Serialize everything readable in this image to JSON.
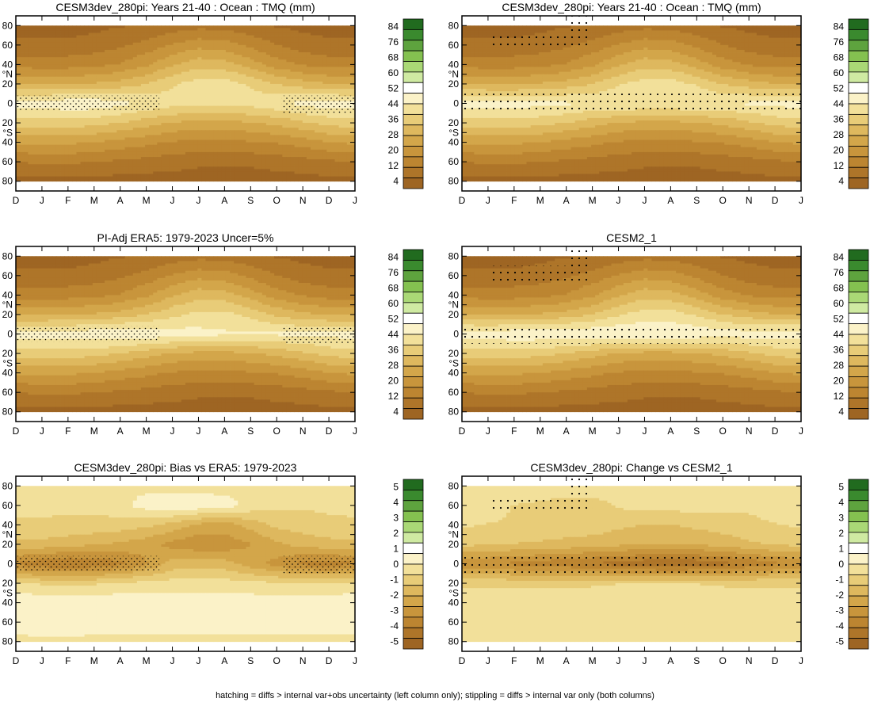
{
  "footer": "hatching = diffs > internal var+obs uncertainty (left column only); stippling = diffs > internal var only (both columns)",
  "axes": {
    "months": [
      "D",
      "J",
      "F",
      "M",
      "A",
      "M",
      "J",
      "J",
      "A",
      "S",
      "O",
      "N",
      "D",
      "J"
    ],
    "lat_ticks": [
      "80",
      "60",
      "40",
      "°N",
      "20",
      "0",
      "20",
      "°S",
      "40",
      "60",
      "80"
    ],
    "lat_values": [
      80,
      60,
      40,
      30,
      20,
      0,
      -20,
      -30,
      -40,
      -60,
      -80
    ]
  },
  "legends": {
    "absolute": {
      "labels": [
        "84",
        "76",
        "68",
        "60",
        "52",
        "44",
        "36",
        "28",
        "20",
        "12",
        "4"
      ],
      "colors": [
        "#216b1f",
        "#3a8a2e",
        "#5ea33e",
        "#84c150",
        "#aad876",
        "#cfeaa2",
        "#ffffff",
        "#fbf2c8",
        "#f2e09a",
        "#e8cc78",
        "#deb85e",
        "#d3a64a",
        "#c8953c",
        "#bc8531",
        "#ae7529",
        "#9e6523"
      ]
    },
    "difference": {
      "labels": [
        "5",
        "4",
        "3",
        "2",
        "1",
        "0",
        "-1",
        "-2",
        "-3",
        "-4",
        "-5"
      ],
      "colors": [
        "#216b1f",
        "#3a8a2e",
        "#5ea33e",
        "#84c150",
        "#aad876",
        "#cfeaa2",
        "#ffffff",
        "#fbf2c8",
        "#f2e09a",
        "#e8cc78",
        "#deb85e",
        "#d3a64a",
        "#c8953c",
        "#bc8531",
        "#ae7529",
        "#9e6523"
      ]
    }
  },
  "chart_data": [
    {
      "type": "heatmap",
      "title": "CESM3dev_280pi: Years 21-40 : Ocean : TMQ (mm)",
      "kind": "absolute",
      "x": [
        "D",
        "J",
        "F",
        "M",
        "A",
        "M",
        "J",
        "J",
        "A",
        "S",
        "O",
        "N",
        "D",
        "J"
      ],
      "y": [
        80,
        60,
        40,
        20,
        0,
        -20,
        -40,
        -60,
        -80
      ],
      "values_mm": [
        [
          3,
          3,
          3,
          4,
          5,
          6,
          8,
          9,
          9,
          7,
          5,
          4,
          3,
          3
        ],
        [
          7,
          7,
          7,
          8,
          10,
          13,
          17,
          20,
          19,
          15,
          11,
          8,
          7,
          7
        ],
        [
          14,
          14,
          14,
          15,
          17,
          21,
          27,
          31,
          30,
          25,
          19,
          16,
          14,
          14
        ],
        [
          28,
          27,
          27,
          28,
          30,
          33,
          38,
          41,
          41,
          38,
          33,
          30,
          28,
          28
        ],
        [
          46,
          47,
          48,
          48,
          46,
          43,
          41,
          40,
          40,
          41,
          43,
          46,
          47,
          46
        ],
        [
          36,
          36,
          36,
          35,
          33,
          30,
          27,
          26,
          26,
          27,
          29,
          32,
          35,
          36
        ],
        [
          23,
          23,
          23,
          22,
          20,
          18,
          16,
          15,
          15,
          16,
          17,
          19,
          22,
          23
        ],
        [
          11,
          12,
          12,
          11,
          10,
          9,
          8,
          7,
          7,
          7,
          8,
          9,
          10,
          11
        ],
        [
          4,
          4,
          4,
          4,
          3,
          3,
          3,
          2,
          2,
          2,
          3,
          3,
          4,
          4
        ]
      ],
      "significance": "hatching and stippling near equator"
    },
    {
      "type": "heatmap",
      "title": "CESM3dev_280pi: Years 21-40 : Ocean : TMQ (mm)",
      "kind": "absolute",
      "x": [
        "D",
        "J",
        "F",
        "M",
        "A",
        "M",
        "J",
        "J",
        "A",
        "S",
        "O",
        "N",
        "D",
        "J"
      ],
      "y": [
        80,
        60,
        40,
        20,
        0,
        -20,
        -40,
        -60,
        -80
      ],
      "values_mm": [
        [
          3,
          3,
          3,
          4,
          5,
          6,
          8,
          9,
          9,
          7,
          5,
          4,
          3,
          3
        ],
        [
          7,
          7,
          7,
          8,
          10,
          13,
          17,
          20,
          19,
          15,
          11,
          8,
          7,
          7
        ],
        [
          14,
          14,
          14,
          15,
          17,
          21,
          27,
          31,
          30,
          25,
          19,
          16,
          14,
          14
        ],
        [
          28,
          27,
          27,
          28,
          30,
          33,
          38,
          41,
          41,
          38,
          33,
          30,
          28,
          28
        ],
        [
          46,
          46,
          46,
          46,
          45,
          44,
          44,
          44,
          44,
          44,
          44,
          45,
          46,
          46
        ],
        [
          36,
          36,
          36,
          35,
          33,
          30,
          27,
          26,
          26,
          27,
          29,
          32,
          35,
          36
        ],
        [
          23,
          23,
          23,
          22,
          20,
          18,
          16,
          15,
          15,
          16,
          17,
          19,
          22,
          23
        ],
        [
          11,
          12,
          12,
          11,
          10,
          9,
          8,
          7,
          7,
          7,
          8,
          9,
          10,
          11
        ],
        [
          4,
          4,
          4,
          4,
          3,
          3,
          3,
          2,
          2,
          2,
          3,
          3,
          4,
          4
        ]
      ],
      "significance": "stippling at northern high latitudes and equator"
    },
    {
      "type": "heatmap",
      "title": "PI-Adj ERA5: 1979-2023 Uncer=5%",
      "kind": "absolute",
      "x": [
        "D",
        "J",
        "F",
        "M",
        "A",
        "M",
        "J",
        "J",
        "A",
        "S",
        "O",
        "N",
        "D",
        "J"
      ],
      "y": [
        80,
        60,
        40,
        20,
        0,
        -20,
        -40,
        -60,
        -80
      ],
      "values_mm": [
        [
          3,
          3,
          3,
          4,
          5,
          6,
          8,
          9,
          9,
          7,
          5,
          4,
          3,
          3
        ],
        [
          7,
          7,
          7,
          8,
          10,
          13,
          17,
          20,
          19,
          15,
          11,
          8,
          7,
          7
        ],
        [
          14,
          14,
          14,
          15,
          17,
          21,
          27,
          31,
          30,
          25,
          19,
          16,
          14,
          14
        ],
        [
          27,
          27,
          27,
          28,
          30,
          33,
          37,
          40,
          40,
          37,
          32,
          29,
          27,
          27
        ],
        [
          46,
          46,
          47,
          48,
          49,
          48,
          47,
          46,
          45,
          45,
          45,
          45,
          46,
          46
        ],
        [
          36,
          36,
          36,
          35,
          33,
          30,
          27,
          26,
          26,
          27,
          29,
          32,
          35,
          36
        ],
        [
          23,
          23,
          23,
          22,
          20,
          18,
          16,
          15,
          15,
          16,
          17,
          19,
          22,
          23
        ],
        [
          11,
          12,
          12,
          11,
          10,
          9,
          8,
          7,
          7,
          7,
          8,
          9,
          10,
          11
        ],
        [
          4,
          4,
          4,
          4,
          3,
          3,
          3,
          2,
          2,
          2,
          3,
          3,
          4,
          4
        ]
      ],
      "significance": "hatching near equator"
    },
    {
      "type": "heatmap",
      "title": "CESM2_1",
      "kind": "absolute",
      "x": [
        "D",
        "J",
        "F",
        "M",
        "A",
        "M",
        "J",
        "J",
        "A",
        "S",
        "O",
        "N",
        "D",
        "J"
      ],
      "y": [
        80,
        60,
        40,
        20,
        0,
        -20,
        -40,
        -60,
        -80
      ],
      "values_mm": [
        [
          3,
          3,
          3,
          4,
          5,
          6,
          8,
          9,
          9,
          7,
          5,
          4,
          3,
          3
        ],
        [
          7,
          7,
          7,
          8,
          10,
          13,
          17,
          20,
          19,
          15,
          11,
          8,
          7,
          7
        ],
        [
          14,
          14,
          14,
          15,
          17,
          21,
          27,
          31,
          30,
          25,
          19,
          16,
          14,
          14
        ],
        [
          28,
          27,
          27,
          28,
          30,
          33,
          38,
          41,
          41,
          38,
          33,
          30,
          28,
          28
        ],
        [
          47,
          47,
          48,
          48,
          49,
          49,
          49,
          49,
          49,
          48,
          47,
          47,
          47,
          47
        ],
        [
          36,
          36,
          36,
          35,
          33,
          30,
          27,
          26,
          26,
          27,
          29,
          32,
          35,
          36
        ],
        [
          23,
          23,
          23,
          22,
          20,
          18,
          16,
          15,
          15,
          16,
          17,
          19,
          22,
          23
        ],
        [
          11,
          12,
          12,
          11,
          10,
          9,
          8,
          7,
          7,
          7,
          8,
          9,
          10,
          11
        ],
        [
          4,
          4,
          4,
          4,
          3,
          3,
          3,
          2,
          2,
          2,
          3,
          3,
          4,
          4
        ]
      ],
      "significance": "stippling at northern high latitudes and equator"
    },
    {
      "type": "heatmap",
      "title": "CESM3dev_280pi: Bias vs ERA5: 1979-2023",
      "kind": "difference",
      "x": [
        "D",
        "J",
        "F",
        "M",
        "A",
        "M",
        "J",
        "J",
        "A",
        "S",
        "O",
        "N",
        "D",
        "J"
      ],
      "y": [
        80,
        60,
        40,
        20,
        0,
        -20,
        -40,
        -60,
        -80
      ],
      "values_mm": [
        [
          -0.3,
          -0.3,
          -0.4,
          -0.3,
          -0.2,
          -0.2,
          -0.3,
          -0.3,
          -0.3,
          -0.3,
          -0.3,
          -0.3,
          -0.3,
          -0.3
        ],
        [
          -0.5,
          -0.5,
          -0.6,
          -0.5,
          -0.2,
          0.3,
          0.5,
          0.5,
          0.3,
          -0.2,
          -0.5,
          -0.6,
          -0.5,
          -0.5
        ],
        [
          -0.8,
          -0.8,
          -0.8,
          -0.9,
          -1.0,
          -1.2,
          -1.6,
          -2.2,
          -2.4,
          -1.8,
          -1.2,
          -1.0,
          -0.9,
          -0.8
        ],
        [
          -1.5,
          -1.6,
          -1.8,
          -2.0,
          -2.2,
          -2.5,
          -3.0,
          -3.3,
          -3.2,
          -2.8,
          -2.2,
          -1.8,
          -1.6,
          -1.5
        ],
        [
          -3.5,
          -4.0,
          -4.2,
          -4.0,
          -3.6,
          -2.8,
          -1.8,
          -1.6,
          -1.8,
          -2.4,
          -3.0,
          -3.6,
          -3.8,
          -3.5
        ],
        [
          -0.6,
          -0.8,
          -0.9,
          -0.8,
          -0.6,
          -0.5,
          -0.4,
          -0.4,
          -0.4,
          -0.5,
          -0.6,
          -0.7,
          -0.7,
          -0.6
        ],
        [
          0.5,
          0.6,
          0.6,
          0.5,
          0.5,
          0.4,
          0.4,
          0.4,
          0.4,
          0.4,
          0.4,
          0.5,
          0.5,
          0.5
        ],
        [
          0.4,
          0.5,
          0.5,
          0.4,
          0.4,
          0.3,
          0.3,
          0.3,
          0.3,
          0.3,
          0.3,
          0.4,
          0.4,
          0.4
        ],
        [
          -0.2,
          -0.2,
          -0.2,
          -0.2,
          -0.2,
          -0.2,
          -0.2,
          -0.2,
          -0.2,
          -0.2,
          -0.2,
          -0.2,
          -0.2,
          -0.2
        ]
      ],
      "significance": "hatching near equator"
    },
    {
      "type": "heatmap",
      "title": "CESM3dev_280pi: Change vs CESM2_1",
      "kind": "difference",
      "x": [
        "D",
        "J",
        "F",
        "M",
        "A",
        "M",
        "J",
        "J",
        "A",
        "S",
        "O",
        "N",
        "D",
        "J"
      ],
      "y": [
        80,
        60,
        40,
        20,
        0,
        -20,
        -40,
        -60,
        -80
      ],
      "values_mm": [
        [
          -0.2,
          -0.2,
          -0.3,
          -0.3,
          -0.2,
          -0.2,
          -0.2,
          -0.2,
          -0.2,
          -0.2,
          -0.2,
          -0.2,
          -0.2,
          -0.2
        ],
        [
          -0.5,
          -0.6,
          -0.7,
          -0.8,
          -1.0,
          -1.0,
          -0.6,
          -0.4,
          -0.4,
          -0.4,
          -0.5,
          -0.6,
          -0.5,
          -0.5
        ],
        [
          -0.6,
          -0.7,
          -0.7,
          -0.8,
          -0.9,
          -1.0,
          -1.2,
          -1.4,
          -1.4,
          -1.2,
          -1.0,
          -0.8,
          -0.7,
          -0.6
        ],
        [
          -1.2,
          -1.3,
          -1.4,
          -1.5,
          -1.6,
          -1.7,
          -1.9,
          -2.1,
          -2.1,
          -2.0,
          -1.8,
          -1.5,
          -1.3,
          -1.2
        ],
        [
          -3.2,
          -3.4,
          -3.6,
          -3.8,
          -4.0,
          -4.2,
          -4.4,
          -4.6,
          -4.8,
          -4.6,
          -4.4,
          -4.0,
          -3.6,
          -3.2
        ],
        [
          -0.8,
          -0.8,
          -0.9,
          -0.9,
          -0.8,
          -0.8,
          -0.7,
          -0.7,
          -0.7,
          -0.7,
          -0.8,
          -0.8,
          -0.8,
          -0.8
        ],
        [
          -0.2,
          -0.2,
          -0.2,
          -0.2,
          -0.2,
          -0.2,
          -0.3,
          -0.4,
          -0.4,
          -0.3,
          -0.2,
          -0.2,
          -0.2,
          -0.2
        ],
        [
          -0.1,
          -0.1,
          -0.1,
          -0.1,
          -0.1,
          -0.1,
          -0.1,
          -0.1,
          -0.1,
          -0.1,
          -0.1,
          -0.1,
          -0.1,
          -0.1
        ],
        [
          -0.1,
          -0.1,
          -0.1,
          -0.1,
          -0.1,
          -0.1,
          -0.1,
          -0.1,
          -0.1,
          -0.1,
          -0.1,
          -0.1,
          -0.1,
          -0.1
        ]
      ],
      "significance": "stippling at northern high latitudes and equator"
    }
  ]
}
